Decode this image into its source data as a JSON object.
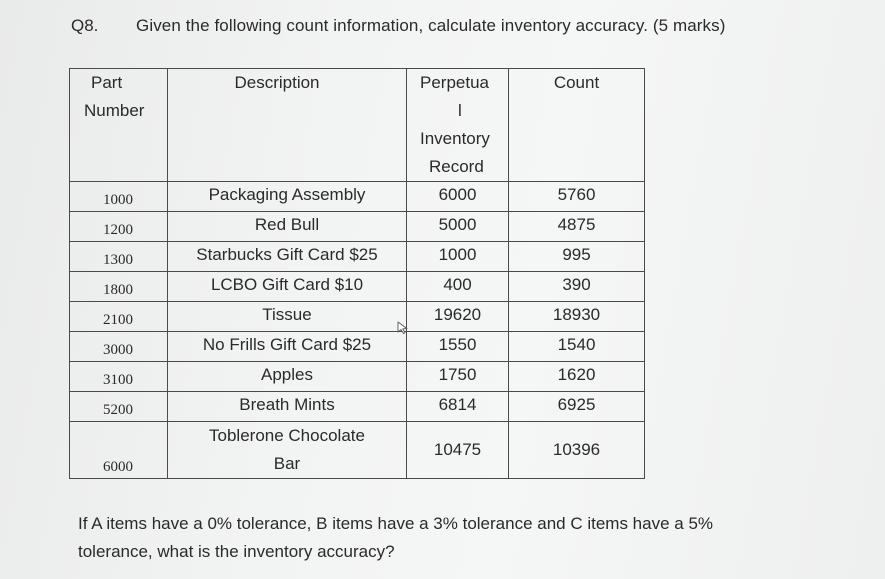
{
  "question": {
    "number": "Q8.",
    "text": "Given the following count information, calculate inventory accuracy. (5 marks)"
  },
  "table": {
    "headers": {
      "part_line1": "Part",
      "part_line2": "Number",
      "description": "Description",
      "perpetual_line1": "Perpetua",
      "perpetual_line2": "l",
      "perpetual_line3": "Inventory",
      "perpetual_line4": "Record",
      "count": "Count"
    },
    "rows": [
      {
        "part": "1000",
        "description": "Packaging Assembly",
        "perpetual": "6000",
        "count": "5760"
      },
      {
        "part": "1200",
        "description": "Red Bull",
        "perpetual": "5000",
        "count": "4875"
      },
      {
        "part": "1300",
        "description": "Starbucks Gift Card $25",
        "perpetual": "1000",
        "count": "995"
      },
      {
        "part": "1800",
        "description": "LCBO Gift Card $10",
        "perpetual": "400",
        "count": "390"
      },
      {
        "part": "2100",
        "description": "Tissue",
        "perpetual": "19620",
        "count": "18930"
      },
      {
        "part": "3000",
        "description": "No Frills Gift Card $25",
        "perpetual": "1550",
        "count": "1540"
      },
      {
        "part": "3100",
        "description": "Apples",
        "perpetual": "1750",
        "count": "1620"
      },
      {
        "part": "5200",
        "description": "Breath Mints",
        "perpetual": "6814",
        "count": "6925"
      }
    ],
    "last_row": {
      "part": "6000",
      "description_line1": "Toblerone Chocolate",
      "description_line2": "Bar",
      "perpetual": "10475",
      "count": "10396"
    }
  },
  "footer": {
    "line1": "If A items have a 0% tolerance, B items have a 3% tolerance and C items have a 5%",
    "line2": "tolerance, what is the inventory accuracy?"
  }
}
